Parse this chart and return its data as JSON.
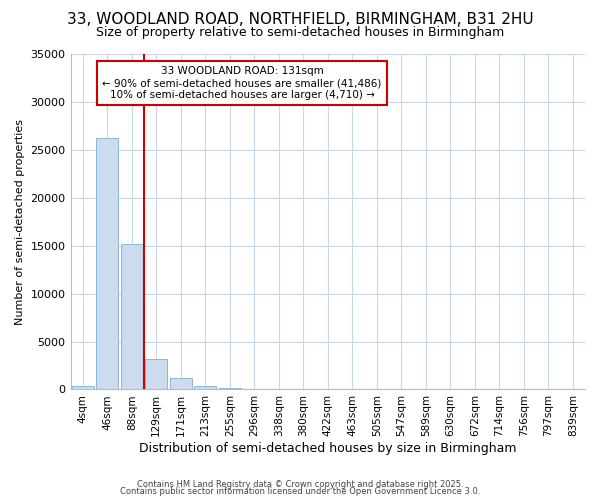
{
  "title": "33, WOODLAND ROAD, NORTHFIELD, BIRMINGHAM, B31 2HU",
  "subtitle": "Size of property relative to semi-detached houses in Birmingham",
  "xlabel": "Distribution of semi-detached houses by size in Birmingham",
  "ylabel": "Number of semi-detached properties",
  "categories": [
    "4sqm",
    "46sqm",
    "88sqm",
    "129sqm",
    "171sqm",
    "213sqm",
    "255sqm",
    "296sqm",
    "338sqm",
    "380sqm",
    "422sqm",
    "463sqm",
    "505sqm",
    "547sqm",
    "589sqm",
    "630sqm",
    "672sqm",
    "714sqm",
    "756sqm",
    "797sqm",
    "839sqm"
  ],
  "bar_heights": [
    400,
    26200,
    15200,
    3200,
    1200,
    400,
    100,
    0,
    0,
    0,
    0,
    0,
    0,
    0,
    0,
    0,
    0,
    0,
    0,
    0,
    0
  ],
  "bar_color": "#ccdcee",
  "bar_edge_color": "#7fafd0",
  "ylim": [
    0,
    35000
  ],
  "yticks": [
    0,
    5000,
    10000,
    15000,
    20000,
    25000,
    30000,
    35000
  ],
  "property_line_x": 2.5,
  "property_line_color": "#cc0000",
  "annotation_title": "33 WOODLAND ROAD: 131sqm",
  "annotation_line1": "← 90% of semi-detached houses are smaller (41,486)",
  "annotation_line2": "10% of semi-detached houses are larger (4,710) →",
  "annotation_box_color": "#cc0000",
  "footer1": "Contains HM Land Registry data © Crown copyright and database right 2025.",
  "footer2": "Contains public sector information licensed under the Open Government Licence 3.0.",
  "background_color": "#ffffff",
  "grid_color": "#c8d8ec",
  "title_fontsize": 11,
  "subtitle_fontsize": 9,
  "tick_fontsize": 7.5,
  "ylabel_fontsize": 8,
  "xlabel_fontsize": 9
}
